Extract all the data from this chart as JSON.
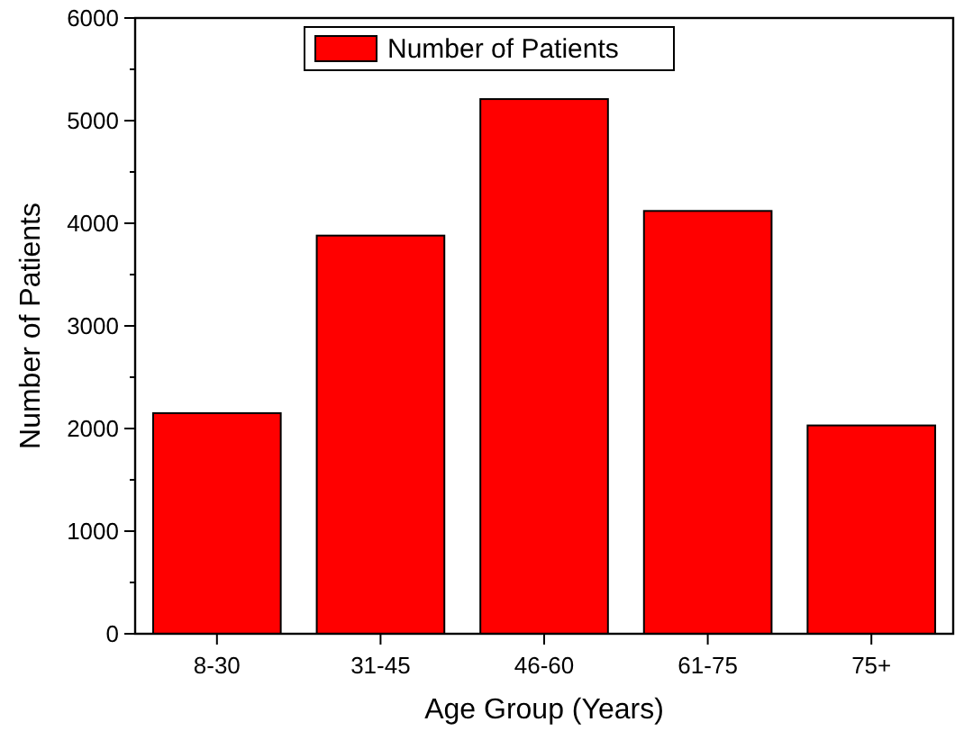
{
  "chart_data": {
    "type": "bar",
    "xlabel": "Age Group (Years)",
    "ylabel": "Number of Patients",
    "categories": [
      "8-30",
      "31-45",
      "46-60",
      "61-75",
      "75+"
    ],
    "series": [
      {
        "name": "Number of Patients",
        "color": "#ff0000",
        "values": [
          2150,
          3880,
          5210,
          4120,
          2030
        ]
      }
    ],
    "ylim": [
      0,
      6000
    ],
    "yticks": [
      0,
      1000,
      2000,
      3000,
      4000,
      5000,
      6000
    ],
    "legend": "top"
  }
}
